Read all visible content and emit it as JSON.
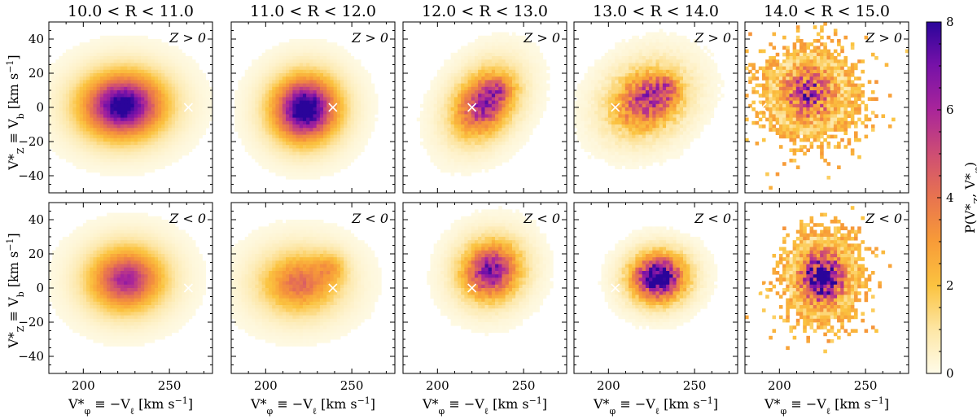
{
  "chart_data": {
    "type": "heatmap",
    "description_grid": "5 columns (R bins) x 2 rows (Z sign) of 2D histograms",
    "columns": [
      {
        "title": "10.0 < R < 11.0",
        "r_min": 10.0,
        "r_max": 11.0,
        "marker_x": 261,
        "marker_y": 0,
        "top": {
          "cx": 223,
          "cy": 1,
          "sx": 14,
          "sy": 11,
          "scale": 9,
          "noise": 0.06,
          "elong": 0.05,
          "blob2": null
        },
        "bottom": {
          "cx": 225,
          "cy": 5,
          "sx": 13,
          "sy": 11,
          "scale": 6.3,
          "noise": 0.06,
          "elong": 0.05,
          "blob2": null
        }
      },
      {
        "title": "11.0 < R < 12.0",
        "r_min": 11.0,
        "r_max": 12.0,
        "marker_x": 239,
        "marker_y": 0,
        "top": {
          "cx": 223,
          "cy": -1,
          "sx": 11,
          "sy": 11,
          "scale": 9.6,
          "noise": 0.08,
          "elong": 0.05,
          "blob2": null
        },
        "bottom": {
          "cx": 220,
          "cy": 3,
          "sx": 14,
          "sy": 11,
          "scale": 4.3,
          "noise": 0.1,
          "elong": 0.05,
          "blob2": [
            238,
            12,
            6,
            6,
            1.5
          ]
        }
      },
      {
        "title": "12.0 < R < 13.0",
        "r_min": 12.0,
        "r_max": 13.0,
        "marker_x": 220,
        "marker_y": 0,
        "top": {
          "cx": 227,
          "cy": 2,
          "sx": 10,
          "sy": 11,
          "scale": 6.6,
          "noise": 0.18,
          "elong": 0.6,
          "blob2": [
            236,
            10,
            5,
            4,
            1.8
          ]
        },
        "bottom": {
          "cx": 231,
          "cy": 10,
          "sx": 10,
          "sy": 10,
          "scale": 7.2,
          "noise": 0.18,
          "elong": 0.15,
          "blob2": null
        }
      },
      {
        "title": "13.0 < R < 14.0",
        "r_min": 13.0,
        "r_max": 14.0,
        "marker_x": 204,
        "marker_y": 0,
        "top": {
          "cx": 222,
          "cy": 4,
          "sx": 12,
          "sy": 11,
          "scale": 5.8,
          "noise": 0.3,
          "elong": 0.4,
          "blob2": [
            233,
            10,
            5,
            5,
            2.2
          ]
        },
        "bottom": {
          "cx": 229,
          "cy": 6,
          "sx": 9,
          "sy": 8,
          "scale": 9.5,
          "noise": 0.25,
          "elong": 0.05,
          "blob2": null
        }
      },
      {
        "title": "14.0 < R < 15.0",
        "r_min": 14.0,
        "r_max": 15.0,
        "marker_x": 190,
        "marker_y": 0,
        "top": {
          "cx": 217,
          "cy": 8,
          "sx": 12,
          "sy": 12,
          "scale": 5.8,
          "noise": 0.55,
          "elong": 0.0,
          "blob2": null
        },
        "bottom": {
          "cx": 225,
          "cy": 6,
          "sx": 9,
          "sy": 11,
          "scale": 9.0,
          "noise": 0.45,
          "elong": 0.0,
          "blob2": null
        }
      }
    ],
    "rows": [
      {
        "label": "Z > 0",
        "z_sign": "positive"
      },
      {
        "label": "Z < 0",
        "z_sign": "negative"
      }
    ],
    "xlim": [
      180,
      275
    ],
    "ylim": [
      -50,
      50
    ],
    "x_ticks": [
      200,
      250
    ],
    "y_ticks": [
      -40,
      -20,
      0,
      20,
      40
    ],
    "xlabel": "V*_φ ≡ −V_ℓ [km s⁻¹]",
    "ylabel": "V*_Z ≡ V_b [km s⁻¹]",
    "colorbar": {
      "label": "P(V*_Z, V*_φ)",
      "min": 0,
      "max": 8,
      "ticks": [
        0,
        2,
        4,
        6,
        8
      ],
      "colormap": "plasma_r"
    },
    "marker": "white x at (V_phi, 0)"
  },
  "labels": {
    "x_tick_200": "200",
    "x_tick_250": "250",
    "cb_0": "0",
    "cb_2": "2",
    "cb_4": "4",
    "cb_6": "6",
    "cb_8": "8"
  }
}
